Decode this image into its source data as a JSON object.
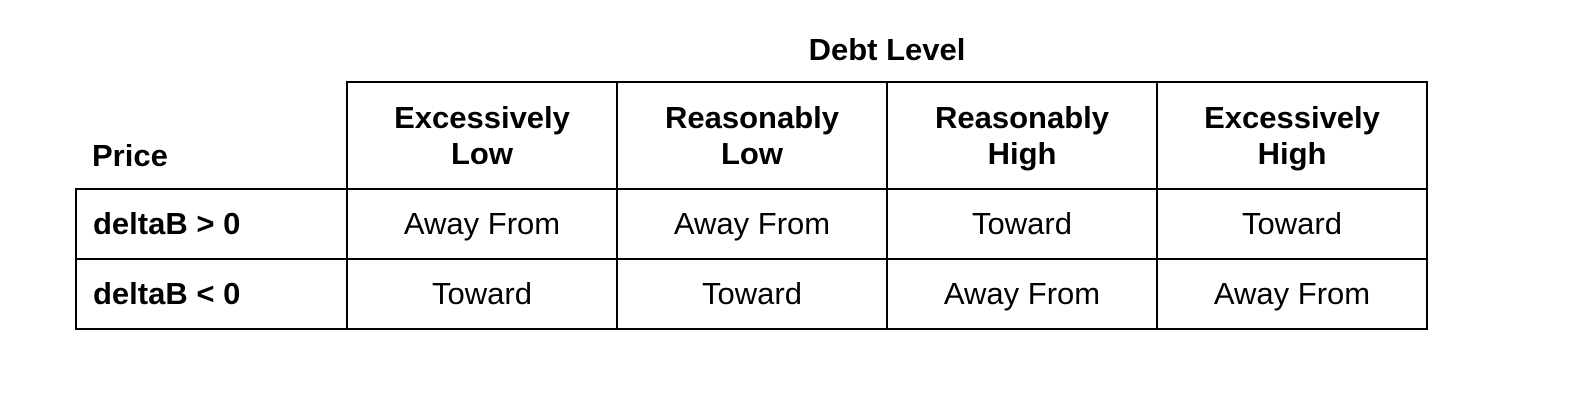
{
  "table": {
    "super_header": "Debt Level",
    "corner_label": "Price",
    "columns": [
      "Excessively\nLow",
      "Reasonably\nLow",
      "Reasonably\nHigh",
      "Excessively\nHigh"
    ],
    "rows": [
      {
        "label": "deltaB > 0",
        "cells": [
          "Away From",
          "Away From",
          "Toward",
          "Toward"
        ]
      },
      {
        "label": "deltaB < 0",
        "cells": [
          "Toward",
          "Toward",
          "Away From",
          "Away From"
        ]
      }
    ]
  }
}
